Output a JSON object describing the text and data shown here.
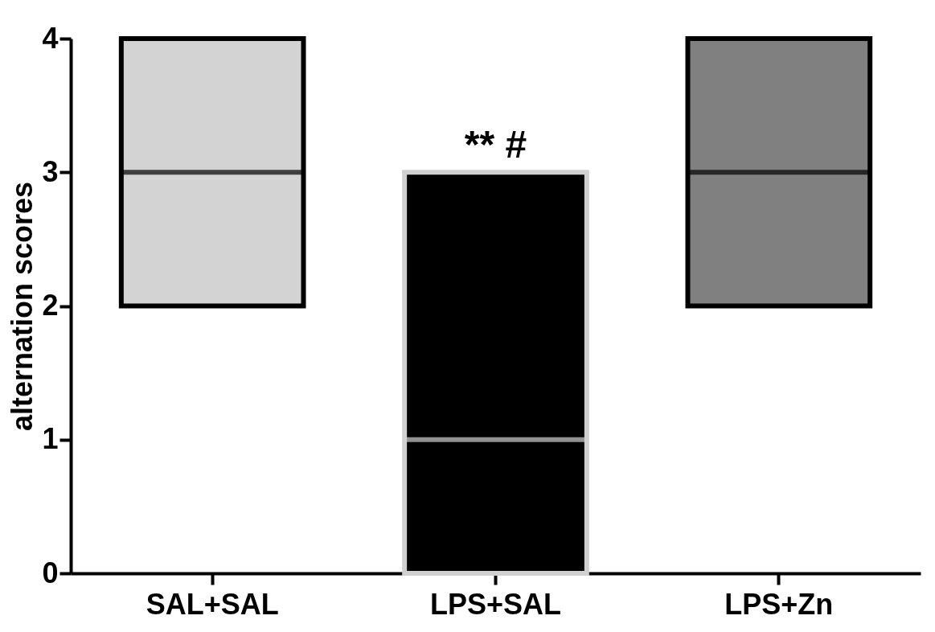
{
  "chart_data": {
    "type": "box",
    "ylabel": "alternation scores",
    "categories": [
      "SAL+SAL",
      "LPS+SAL",
      "LPS+Zn"
    ],
    "boxes": [
      {
        "low": 2,
        "q1": 2,
        "median": 3,
        "q3": 4,
        "high": 4
      },
      {
        "low": 0,
        "q1": 0,
        "median": 1,
        "q3": 3,
        "high": 3
      },
      {
        "low": 2,
        "q1": 2,
        "median": 3,
        "q3": 4,
        "high": 4
      }
    ],
    "colors": [
      "#d3d3d3",
      "#000000",
      "#808080"
    ],
    "ylim": [
      0,
      4
    ],
    "yticks": [
      0,
      1,
      2,
      3,
      4
    ],
    "grid": false,
    "annotations": [
      {
        "text": "** #",
        "x": "LPS+SAL",
        "y": 3
      }
    ]
  }
}
